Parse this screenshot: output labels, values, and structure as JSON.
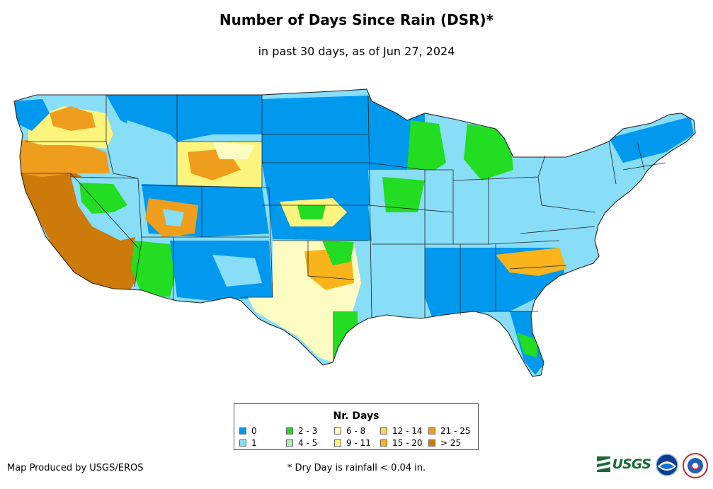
{
  "title": "Number of Days Since Rain (DSR)*",
  "subtitle": "in past 30 days, as of Jun 27, 2024",
  "legend": {
    "title": "Nr. Days",
    "items": [
      {
        "label": "0",
        "color": "#0099ee"
      },
      {
        "label": "1",
        "color": "#88ddf7"
      },
      {
        "label": "2 - 3",
        "color": "#22dd22"
      },
      {
        "label": "4 - 5",
        "color": "#a6f0b4"
      },
      {
        "label": "6 - 8",
        "color": "#fcfcc2"
      },
      {
        "label": "9 - 11",
        "color": "#fcf47c"
      },
      {
        "label": "12 - 14",
        "color": "#f6d460"
      },
      {
        "label": "15 - 20",
        "color": "#f8b41a"
      },
      {
        "label": "21 - 25",
        "color": "#ee9e1c"
      },
      {
        "label": "> 25",
        "color": "#cc7a0a"
      }
    ]
  },
  "producer": "Map Produced by USGS/EROS",
  "footnote": "* Dry Day is rainfall < 0.04 in.",
  "logos": {
    "usgs": "USGS"
  }
}
